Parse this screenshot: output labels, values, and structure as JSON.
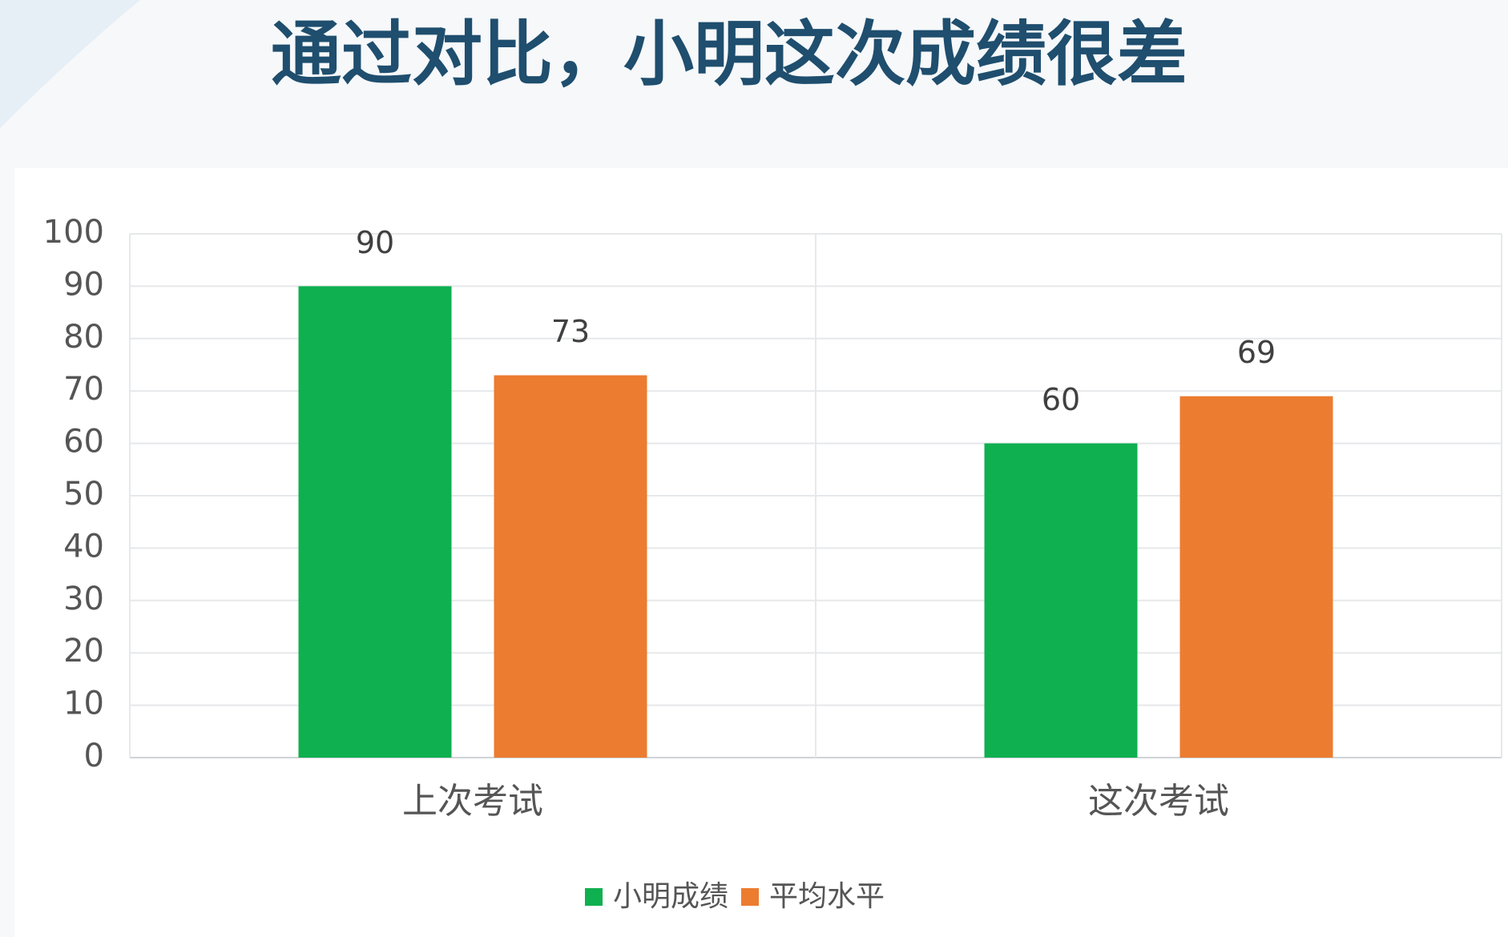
{
  "chart_data": {
    "type": "bar",
    "title": "通过对比，小明这次成绩很差",
    "categories": [
      "上次考试",
      "这次考试"
    ],
    "series": [
      {
        "name": "小明成绩",
        "color": "#0fb050",
        "values": [
          90,
          60
        ]
      },
      {
        "name": "平均水平",
        "color": "#ec7c30",
        "values": [
          73,
          69
        ]
      }
    ],
    "ylim": [
      0,
      100
    ],
    "yticks": [
      0,
      10,
      20,
      30,
      40,
      50,
      60,
      70,
      80,
      90,
      100
    ],
    "grid": true,
    "legend": "bottom"
  }
}
